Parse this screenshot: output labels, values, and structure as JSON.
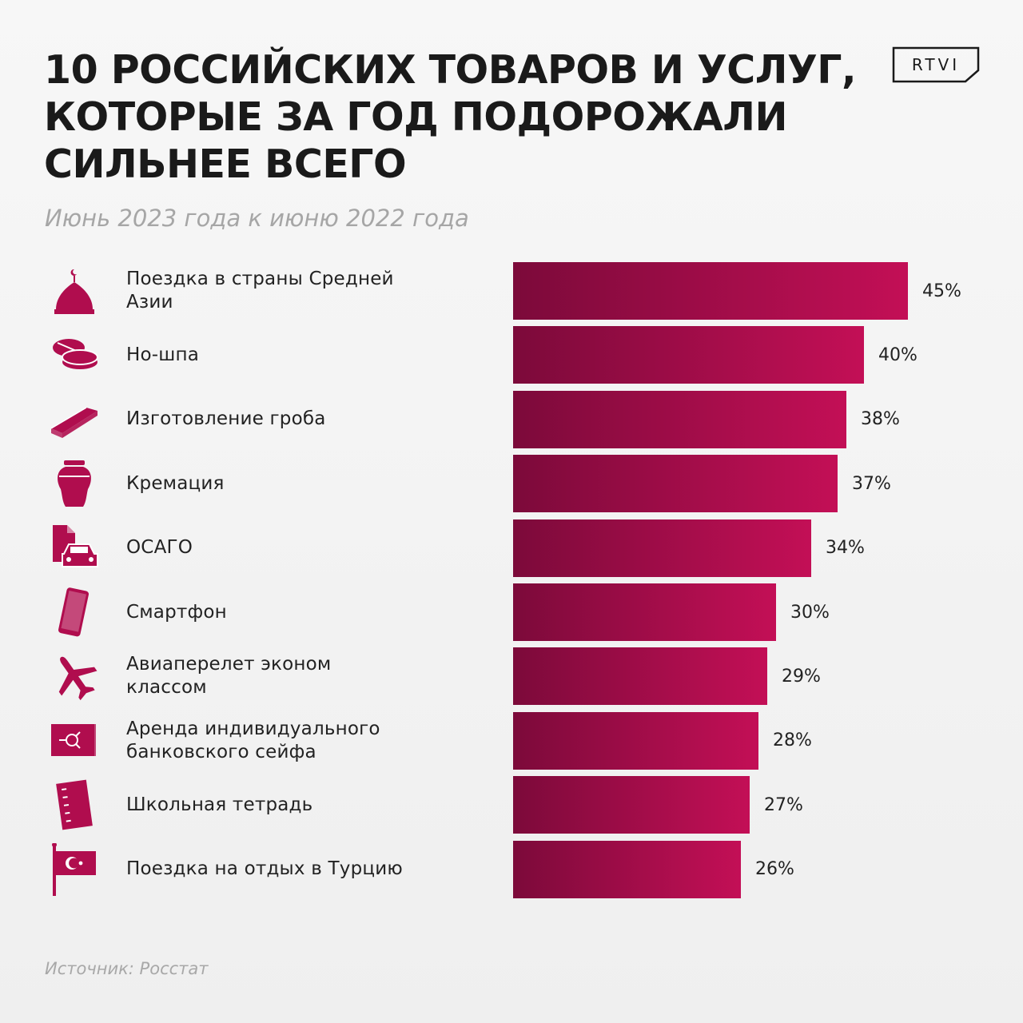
{
  "title_lines": [
    "10 РОССИЙСКИХ ТОВАРОВ И УСЛУГ,",
    "КОТОРЫЕ ЗА ГОД ПОДОРОЖАЛИ",
    "СИЛЬНЕЕ ВСЕГО"
  ],
  "subtitle": "Июнь 2023 года к июню 2022 года",
  "logo": "RTVI",
  "source": "Источник: Росстат",
  "colors": {
    "bar_start": "#7c0a3a",
    "bar_end": "#c30f56",
    "icon": "#b00d4e",
    "text": "#222222",
    "muted": "#a6a6a6"
  },
  "chart_data": {
    "type": "bar",
    "orientation": "horizontal",
    "unit": "%",
    "xlim": [
      0,
      45
    ],
    "items": [
      {
        "label": "Поездка в страны Средней Азии",
        "value": 45,
        "value_label": "45%",
        "icon": "mosque-dome-icon"
      },
      {
        "label": "Но-шпа",
        "value": 40,
        "value_label": "40%",
        "icon": "pills-icon"
      },
      {
        "label": "Изготовление гроба",
        "value": 38,
        "value_label": "38%",
        "icon": "coffin-icon"
      },
      {
        "label": "Кремация",
        "value": 37,
        "value_label": "37%",
        "icon": "urn-icon"
      },
      {
        "label": "ОСАГО",
        "value": 34,
        "value_label": "34%",
        "icon": "car-insurance-icon"
      },
      {
        "label": "Смартфон",
        "value": 30,
        "value_label": "30%",
        "icon": "smartphone-icon"
      },
      {
        "label": "Авиаперелет эконом классом",
        "value": 29,
        "value_label": "29%",
        "icon": "airplane-icon"
      },
      {
        "label": "Аренда индивидуального банковского сейфа",
        "value": 28,
        "value_label": "28%",
        "icon": "safe-icon"
      },
      {
        "label": "Школьная тетрадь",
        "value": 27,
        "value_label": "27%",
        "icon": "notebook-icon"
      },
      {
        "label": "Поездка на отдых в Турцию",
        "value": 26,
        "value_label": "26%",
        "icon": "turkey-flag-icon"
      }
    ]
  }
}
